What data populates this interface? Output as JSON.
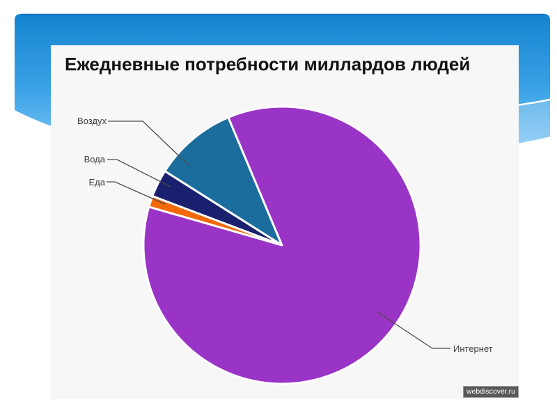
{
  "slide": {
    "title": "Ежедневные потребности миллардов людей"
  },
  "watermark": {
    "text": "webdiscover.ru",
    "bg_color": "#59595b",
    "text_color": "#ffffff"
  },
  "theme": {
    "blue_top": "#1583d0",
    "blue_mid": "#3aa2e6",
    "blue_light": "#8acbf4",
    "panel_bg": "#f7f7f8",
    "leader_line": "#4a4a4a"
  },
  "chart_data": {
    "type": "pie",
    "title": "Ежедневные потребности миллардов людей",
    "slices": [
      {
        "label": "Воздух",
        "value_pct": 9.7,
        "color": "#1a6d9d"
      },
      {
        "label": "Вода",
        "value_pct": 3.2,
        "color": "#1a206e"
      },
      {
        "label": "Еда",
        "value_pct": 1.3,
        "color": "#f4680c"
      },
      {
        "label": "Интернет",
        "value_pct": 85.8,
        "color": "#9a34c7"
      }
    ],
    "start_angle_deg": 112.8,
    "sweep_direction": "counterclockwise",
    "slice_gap_color": "#ffffff",
    "data_labels": "none",
    "legend": "none",
    "label_style": "callout-leader-lines"
  }
}
